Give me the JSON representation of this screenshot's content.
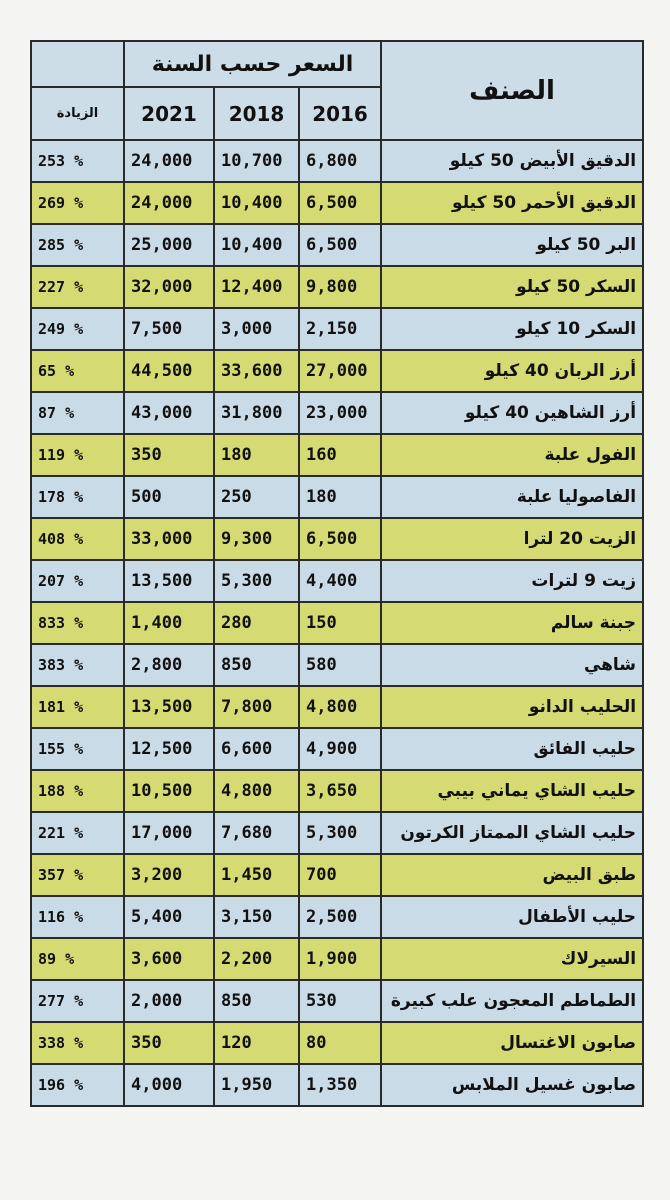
{
  "header": {
    "item": "الصنف",
    "group": "السعر حسب السنة",
    "columns": [
      "2016",
      "2018",
      "2021",
      "الزيادة"
    ]
  },
  "table": {
    "rows": [
      [
        "الدقيق الأبيض 50 كيلو",
        "6,800",
        "10,700",
        "24,000",
        "% 253"
      ],
      [
        "الدقيق الأحمر 50 كيلو",
        "6,500",
        "10,400",
        "24,000",
        "% 269"
      ],
      [
        "البر 50 كيلو",
        "6,500",
        "10,400",
        "25,000",
        "% 285"
      ],
      [
        "السكر 50 كيلو",
        "9,800",
        "12,400",
        "32,000",
        "% 227"
      ],
      [
        "السكر 10 كيلو",
        "2,150",
        "3,000",
        "7,500",
        "% 249"
      ],
      [
        "أرز الربان 40 كيلو",
        "27,000",
        "33,600",
        "44,500",
        "% 65"
      ],
      [
        "أرز الشاهين 40 كيلو",
        "23,000",
        "31,800",
        "43,000",
        "% 87"
      ],
      [
        "الفول علبة",
        "160",
        "180",
        "350",
        "% 119"
      ],
      [
        "الفاصوليا علبة",
        "180",
        "250",
        "500",
        "% 178"
      ],
      [
        "الزيت 20 لترا",
        "6,500",
        "9,300",
        "33,000",
        "% 408"
      ],
      [
        "زيت 9 لترات",
        "4,400",
        "5,300",
        "13,500",
        "% 207"
      ],
      [
        "جبنة سالم",
        "150",
        "280",
        "1,400",
        "% 833"
      ],
      [
        "شاهي",
        "580",
        "850",
        "2,800",
        "% 383"
      ],
      [
        "الحليب الدانو",
        "4,800",
        "7,800",
        "13,500",
        "% 181"
      ],
      [
        "حليب الفائق",
        "4,900",
        "6,600",
        "12,500",
        "% 155"
      ],
      [
        "حليب الشاي يماني بيبي",
        "3,650",
        "4,800",
        "10,500",
        "% 188"
      ],
      [
        "حليب الشاي الممتاز الكرتون",
        "5,300",
        "7,680",
        "17,000",
        "% 221"
      ],
      [
        "طبق البيض",
        "700",
        "1,450",
        "3,200",
        "% 357"
      ],
      [
        "حليب الأطفال",
        "2,500",
        "3,150",
        "5,400",
        "% 116"
      ],
      [
        "السيرلاك",
        "1,900",
        "2,200",
        "3,600",
        "% 89"
      ],
      [
        "الطماطم المعجون علب كبيرة",
        "530",
        "850",
        "2,000",
        "% 277"
      ],
      [
        "صابون الاغتسال",
        "80",
        "120",
        "350",
        "% 338"
      ],
      [
        "صابون غسيل الملابس",
        "1,350",
        "1,950",
        "4,000",
        "% 196"
      ]
    ]
  }
}
